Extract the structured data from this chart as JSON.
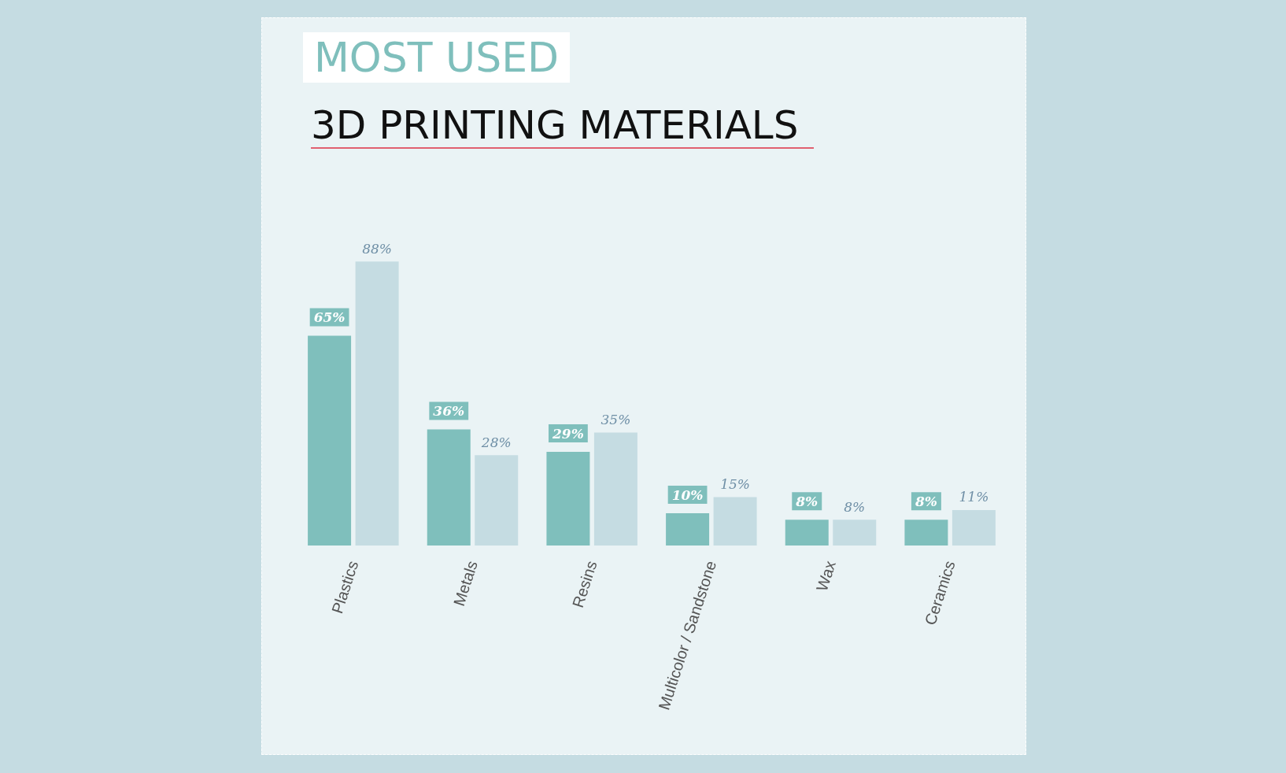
{
  "chart_data": {
    "type": "bar",
    "title": "MOST USED",
    "subtitle": "3D PRINTING MATERIALS",
    "categories": [
      "Plastics",
      "Metals",
      "Resins",
      "Multicolor / Sandstone",
      "Wax",
      "Ceramics"
    ],
    "series": [
      {
        "color": "#7fbfbc",
        "values": [
          65,
          36,
          29,
          10,
          8,
          8
        ],
        "value_labels": [
          "65%",
          "36%",
          "29%",
          "10%",
          "8%",
          "8%"
        ]
      },
      {
        "color": "#c5dce2",
        "values": [
          88,
          28,
          35,
          15,
          8,
          11
        ],
        "value_labels": [
          "88%",
          "28%",
          "35%",
          "15%",
          "8%",
          "11%"
        ]
      }
    ]
  }
}
